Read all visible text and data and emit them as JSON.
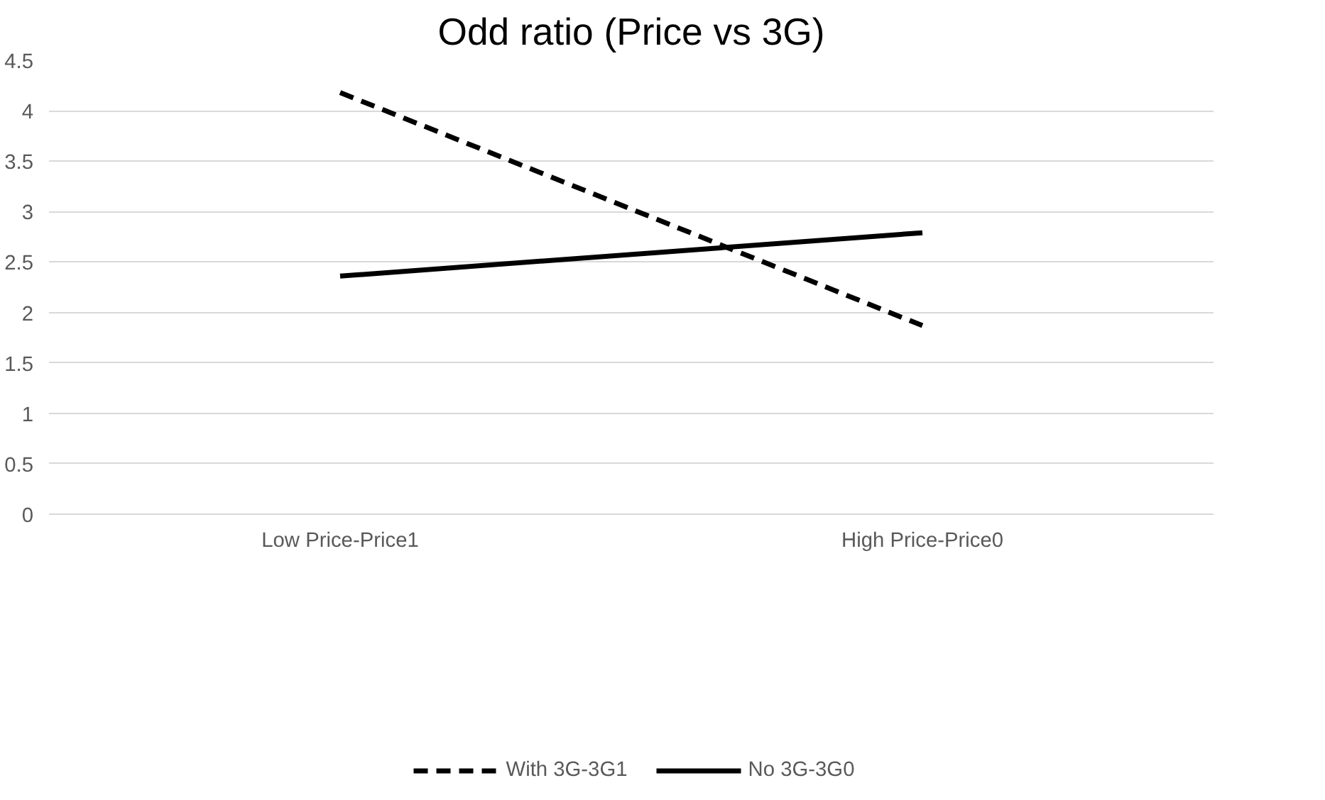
{
  "chart_data": {
    "type": "line",
    "title": "Odd ratio (Price vs 3G)",
    "categories": [
      "Low Price-Price1",
      "High Price-Price0"
    ],
    "series": [
      {
        "name": "With 3G-3G1",
        "color": "#000000",
        "line_style": "dashed",
        "values": [
          4.18,
          1.87
        ]
      },
      {
        "name": "No 3G-3G0",
        "color": "#000000",
        "line_style": "solid",
        "values": [
          2.36,
          2.79
        ]
      }
    ],
    "ylim": [
      0,
      4.5
    ],
    "yticks": [
      0,
      0.5,
      1,
      1.5,
      2,
      2.5,
      3,
      3.5,
      4,
      4.5
    ],
    "grid": "y",
    "legend": "bottom",
    "marker": "none"
  }
}
